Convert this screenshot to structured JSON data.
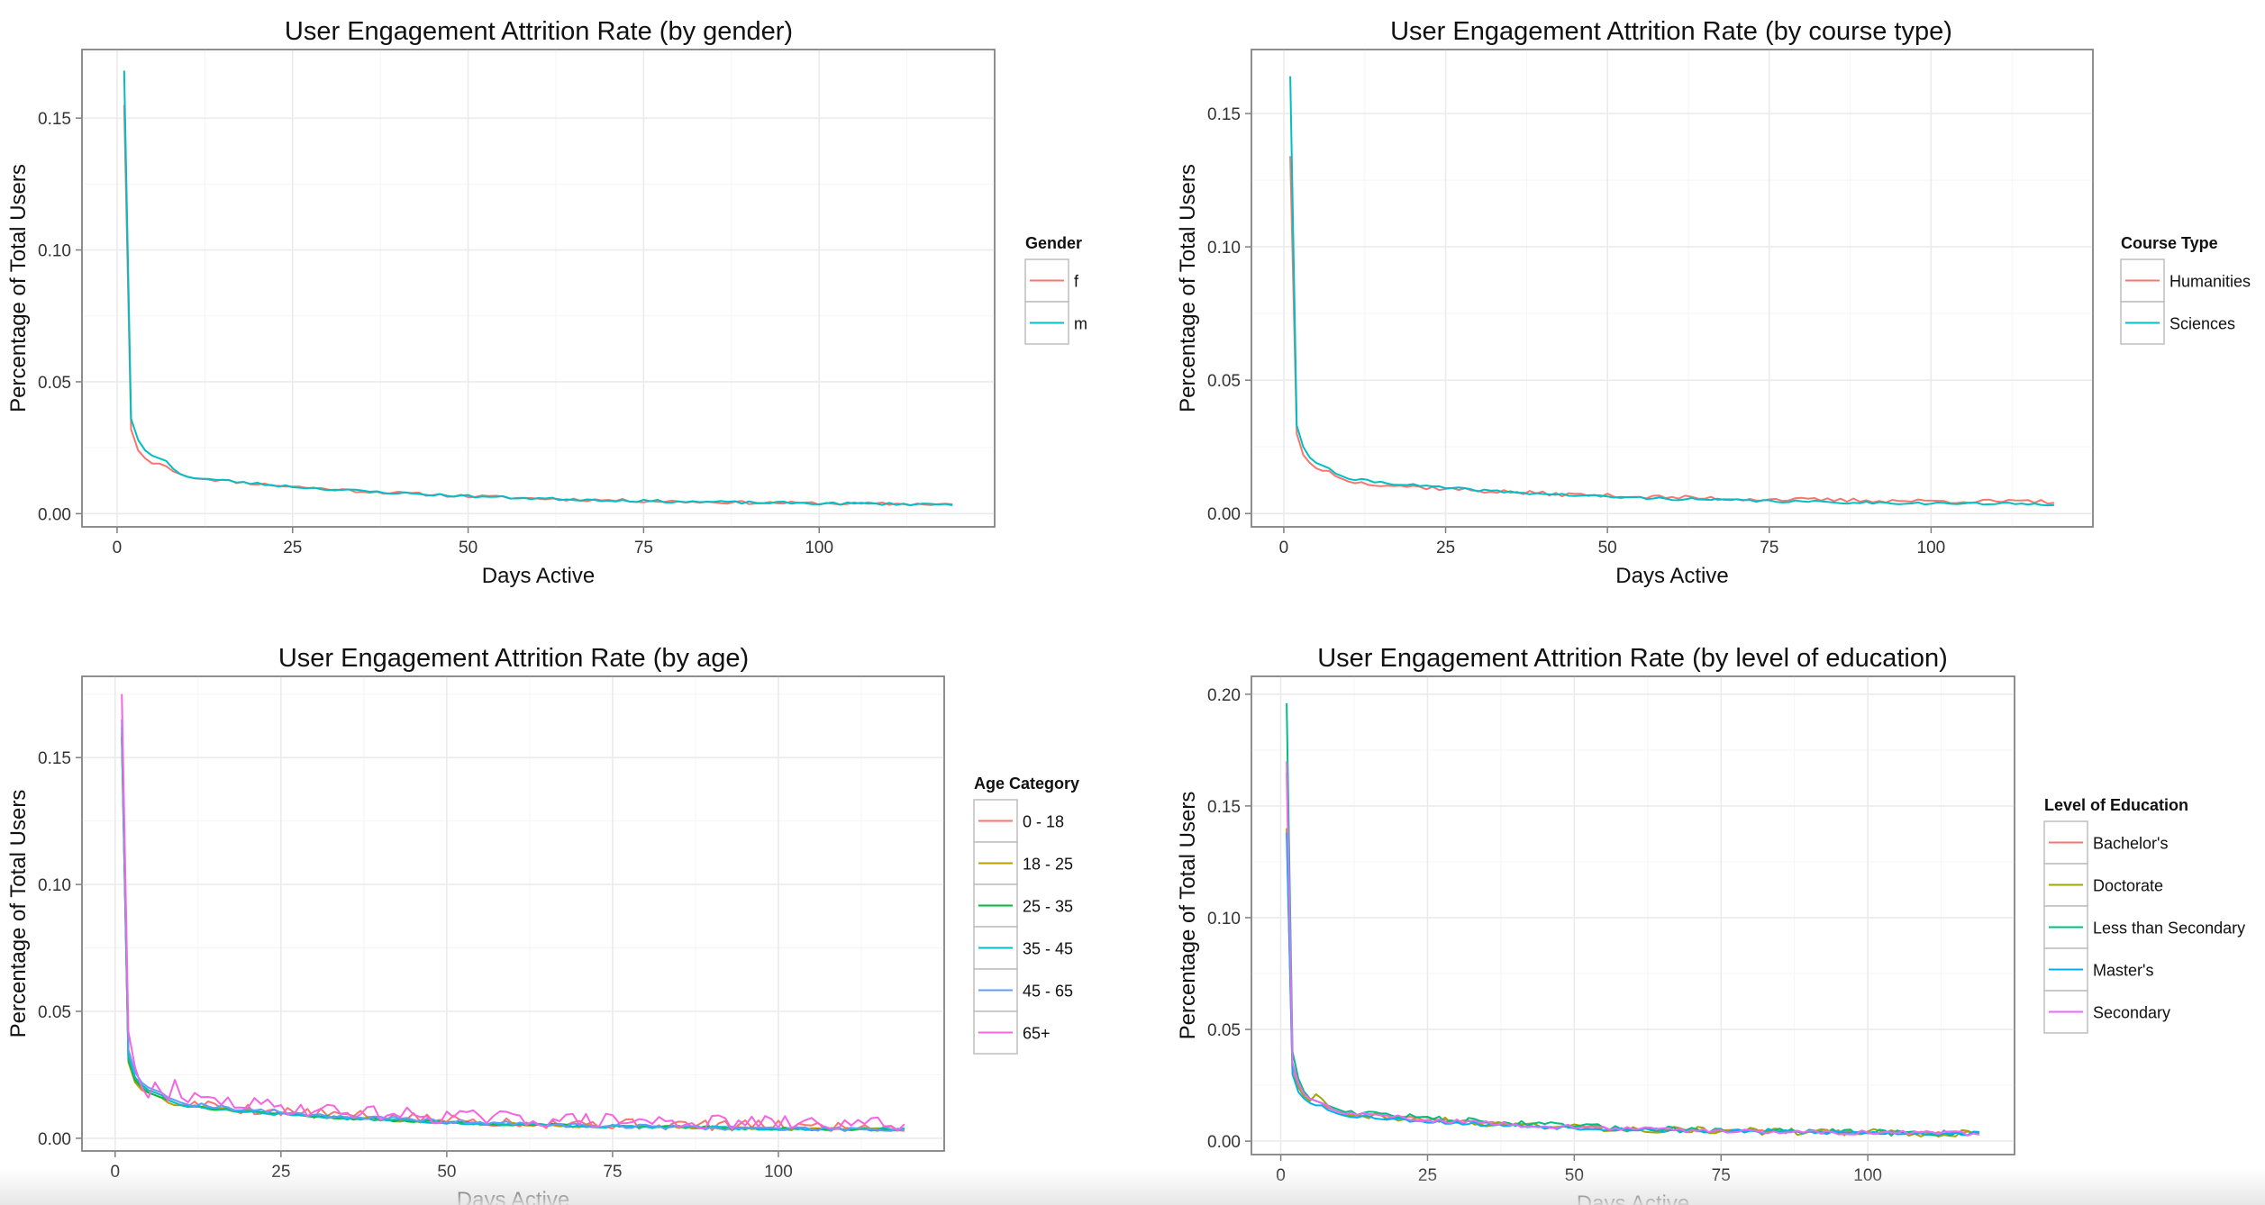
{
  "chart_data": [
    {
      "type": "line",
      "title": "User Engagement Attrition Rate (by gender)",
      "xlabel": "Days Active",
      "ylabel": "Percentage of Total Users",
      "xlim": [
        -5,
        125
      ],
      "ylim": [
        -0.005,
        0.176
      ],
      "xticks": [
        0,
        25,
        50,
        75,
        100
      ],
      "yticks": [
        0.0,
        0.05,
        0.1,
        0.15
      ],
      "ytick_labels": [
        "0.00",
        "0.05",
        "0.10",
        "0.15"
      ],
      "grid": true,
      "legend": {
        "title": "Gender",
        "position": "right"
      },
      "x_range": [
        1,
        119
      ],
      "series": [
        {
          "name": "f",
          "color": "#F8766D",
          "values_start": [
            0.155,
            0.032,
            0.024,
            0.021,
            0.019,
            0.019,
            0.018,
            0.016,
            0.015,
            0.014
          ],
          "end_value": 0.003,
          "noise": 0.0006,
          "seed": 11
        },
        {
          "name": "m",
          "color": "#00BFC4",
          "values_start": [
            0.168,
            0.036,
            0.028,
            0.024,
            0.022,
            0.021,
            0.02,
            0.017,
            0.015,
            0.014
          ],
          "end_value": 0.003,
          "noise": 0.0005,
          "seed": 23
        }
      ]
    },
    {
      "type": "line",
      "title": "User Engagement Attrition Rate (by course type)",
      "xlabel": "Days Active",
      "ylabel": "Percentage of Total Users",
      "xlim": [
        -5,
        125
      ],
      "ylim": [
        -0.005,
        0.174
      ],
      "xticks": [
        0,
        25,
        50,
        75,
        100
      ],
      "yticks": [
        0.0,
        0.05,
        0.1,
        0.15
      ],
      "ytick_labels": [
        "0.00",
        "0.05",
        "0.10",
        "0.15"
      ],
      "grid": true,
      "legend": {
        "title": "Course Type",
        "position": "right"
      },
      "x_range": [
        1,
        119
      ],
      "series": [
        {
          "name": "Humanities",
          "color": "#F8766D",
          "values_start": [
            0.134,
            0.03,
            0.022,
            0.019,
            0.017,
            0.016,
            0.016,
            0.014,
            0.013,
            0.012
          ],
          "end_value": 0.004,
          "noise": 0.0008,
          "seed": 37
        },
        {
          "name": "Sciences",
          "color": "#00BFC4",
          "values_start": [
            0.164,
            0.033,
            0.025,
            0.021,
            0.019,
            0.018,
            0.017,
            0.015,
            0.014,
            0.013
          ],
          "end_value": 0.003,
          "noise": 0.0005,
          "seed": 41
        }
      ]
    },
    {
      "type": "line",
      "title": "User Engagement Attrition Rate (by age)",
      "xlabel": "Days Active",
      "ylabel": "Percentage of Total Users",
      "xlim": [
        -5,
        125
      ],
      "ylim": [
        -0.005,
        0.182
      ],
      "xticks": [
        0,
        25,
        50,
        75,
        100
      ],
      "yticks": [
        0.0,
        0.05,
        0.1,
        0.15
      ],
      "ytick_labels": [
        "0.00",
        "0.05",
        "0.10",
        "0.15"
      ],
      "grid": true,
      "legend": {
        "title": "Age Category",
        "position": "right"
      },
      "x_range": [
        1,
        119
      ],
      "series": [
        {
          "name": "0 - 18",
          "color": "#F8766D",
          "values_start": [
            0.16,
            0.033,
            0.024,
            0.021,
            0.019,
            0.018,
            0.017,
            0.016,
            0.015,
            0.014
          ],
          "end_value": 0.004,
          "noise": 0.0022,
          "seed": 5
        },
        {
          "name": "18 - 25",
          "color": "#B79F00",
          "values_start": [
            0.158,
            0.03,
            0.022,
            0.019,
            0.018,
            0.017,
            0.016,
            0.014,
            0.013,
            0.013
          ],
          "end_value": 0.003,
          "noise": 0.0006,
          "seed": 7
        },
        {
          "name": "25 - 35",
          "color": "#00BA38",
          "values_start": [
            0.158,
            0.031,
            0.023,
            0.02,
            0.018,
            0.017,
            0.016,
            0.015,
            0.014,
            0.013
          ],
          "end_value": 0.003,
          "noise": 0.0006,
          "seed": 13
        },
        {
          "name": "35 - 45",
          "color": "#00BFC4",
          "values_start": [
            0.162,
            0.032,
            0.024,
            0.021,
            0.019,
            0.018,
            0.017,
            0.015,
            0.014,
            0.013
          ],
          "end_value": 0.003,
          "noise": 0.0007,
          "seed": 17
        },
        {
          "name": "45 - 65",
          "color": "#619CFF",
          "values_start": [
            0.165,
            0.035,
            0.026,
            0.022,
            0.02,
            0.019,
            0.018,
            0.016,
            0.015,
            0.014
          ],
          "end_value": 0.003,
          "noise": 0.0009,
          "seed": 19
        },
        {
          "name": "65+",
          "color": "#F564E3",
          "values_start": [
            0.175,
            0.042,
            0.028,
            0.02,
            0.016,
            0.022,
            0.018,
            0.015,
            0.023,
            0.016
          ],
          "end_value": 0.005,
          "noise": 0.003,
          "seed": 29
        }
      ]
    },
    {
      "type": "line",
      "title": "User Engagement Attrition Rate (by level of education)",
      "xlabel": "Days Active",
      "ylabel": "Percentage of Total Users",
      "xlim": [
        -5,
        125
      ],
      "ylim": [
        -0.006,
        0.208
      ],
      "xticks": [
        0,
        25,
        50,
        75,
        100
      ],
      "yticks": [
        0.0,
        0.05,
        0.1,
        0.15,
        0.2
      ],
      "ytick_labels": [
        "0.00",
        "0.05",
        "0.10",
        "0.15",
        "0.20"
      ],
      "grid": true,
      "legend": {
        "title": "Level of Education",
        "position": "right"
      },
      "x_range": [
        1,
        119
      ],
      "series": [
        {
          "name": "Bachelor's",
          "color": "#F8766D",
          "values_start": [
            0.165,
            0.033,
            0.025,
            0.022,
            0.019,
            0.018,
            0.017,
            0.015,
            0.014,
            0.013
          ],
          "end_value": 0.003,
          "noise": 0.0008,
          "seed": 31
        },
        {
          "name": "Doctorate",
          "color": "#A3A500",
          "values_start": [
            0.14,
            0.03,
            0.024,
            0.02,
            0.018,
            0.021,
            0.019,
            0.016,
            0.014,
            0.013
          ],
          "end_value": 0.003,
          "noise": 0.0016,
          "seed": 43
        },
        {
          "name": "Less than Secondary",
          "color": "#00BF7D",
          "values_start": [
            0.196,
            0.04,
            0.028,
            0.022,
            0.019,
            0.018,
            0.017,
            0.016,
            0.015,
            0.014
          ],
          "end_value": 0.003,
          "noise": 0.0014,
          "seed": 47
        },
        {
          "name": "Master's",
          "color": "#00B0F6",
          "values_start": [
            0.138,
            0.03,
            0.022,
            0.019,
            0.017,
            0.016,
            0.016,
            0.014,
            0.013,
            0.012
          ],
          "end_value": 0.003,
          "noise": 0.0009,
          "seed": 53
        },
        {
          "name": "Secondary",
          "color": "#E76BF3",
          "values_start": [
            0.17,
            0.035,
            0.026,
            0.021,
            0.019,
            0.018,
            0.017,
            0.016,
            0.014,
            0.013
          ],
          "end_value": 0.003,
          "noise": 0.001,
          "seed": 59
        }
      ]
    }
  ]
}
